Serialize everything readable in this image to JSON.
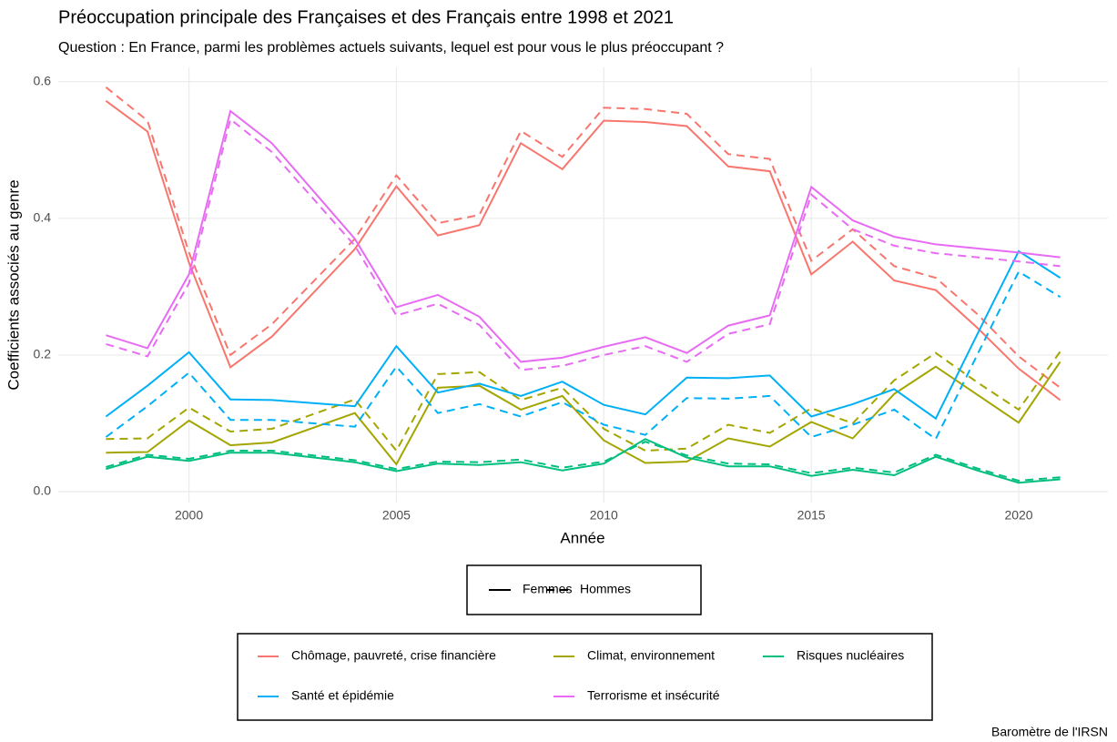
{
  "chart_data": {
    "type": "line",
    "title": "Préoccupation principale des Françaises et des Français entre 1998 et 2021",
    "subtitle": "Question : En France, parmi les problèmes actuels suivants, lequel est pour vous le plus préoccupant ?",
    "x_label": "Année",
    "y_label": "Coefficients associés au genre",
    "caption": "Baromètre de l'IRSN",
    "x": [
      1998,
      1999,
      2000,
      2001,
      2002,
      2004,
      2005,
      2006,
      2007,
      2008,
      2009,
      2010,
      2011,
      2012,
      2013,
      2014,
      2015,
      2016,
      2017,
      2018,
      2019,
      2020,
      2021
    ],
    "xlim": [
      1996.85,
      2022.15
    ],
    "xticks": [
      2000,
      2005,
      2010,
      2015,
      2020
    ],
    "ylim": [
      -0.016,
      0.621
    ],
    "yticks": [
      {
        "value": 0,
        "label": "0.0"
      },
      0.2,
      0.4,
      0.6
    ],
    "grid": true,
    "linetypes": [
      {
        "name": "Femmes",
        "dash": "solid"
      },
      {
        "name": "Hommes",
        "dash": "dashed"
      }
    ],
    "series": [
      {
        "name": "Chômage, pauvreté, crise financière",
        "color": "#F8766D",
        "values": [
          [
            0.572,
            0.527,
            0.335,
            0.182,
            0.227,
            0.355,
            0.447,
            0.375,
            0.39,
            0.51,
            0.472,
            0.543,
            0.541,
            0.535,
            0.476,
            0.469,
            0.318,
            0.366,
            0.309,
            0.295,
            0.24,
            0.18,
            0.134
          ],
          [
            0.592,
            0.543,
            0.35,
            0.2,
            0.245,
            0.37,
            0.463,
            0.393,
            0.405,
            0.528,
            0.49,
            0.562,
            0.56,
            0.553,
            0.494,
            0.487,
            0.338,
            0.384,
            0.33,
            0.313,
            0.26,
            0.198,
            0.152
          ]
        ]
      },
      {
        "name": "Climat, environnement",
        "color": "#A3A500",
        "values": [
          [
            0.057,
            0.058,
            0.104,
            0.068,
            0.072,
            0.115,
            0.04,
            0.152,
            0.155,
            0.12,
            0.14,
            0.075,
            0.042,
            0.044,
            0.078,
            0.066,
            0.102,
            0.078,
            0.143,
            0.183,
            0.142,
            0.101,
            0.19
          ],
          [
            0.077,
            0.078,
            0.123,
            0.088,
            0.092,
            0.135,
            0.06,
            0.172,
            0.175,
            0.134,
            0.152,
            0.092,
            0.06,
            0.063,
            0.098,
            0.086,
            0.122,
            0.1,
            0.163,
            0.203,
            0.16,
            0.12,
            0.205
          ]
        ]
      },
      {
        "name": "Risques nucléaires",
        "color": "#00BF7D",
        "values": [
          [
            0.033,
            0.051,
            0.045,
            0.057,
            0.057,
            0.043,
            0.03,
            0.041,
            0.039,
            0.043,
            0.031,
            0.041,
            0.077,
            0.05,
            0.037,
            0.037,
            0.023,
            0.032,
            0.024,
            0.051,
            0.031,
            0.013,
            0.018
          ],
          [
            0.036,
            0.054,
            0.048,
            0.06,
            0.06,
            0.046,
            0.033,
            0.044,
            0.043,
            0.047,
            0.035,
            0.044,
            0.073,
            0.053,
            0.041,
            0.04,
            0.027,
            0.035,
            0.028,
            0.054,
            0.034,
            0.016,
            0.021
          ]
        ]
      },
      {
        "name": "Santé et épidémie",
        "color": "#00B0F6",
        "values": [
          [
            0.11,
            0.155,
            0.204,
            0.135,
            0.134,
            0.125,
            0.213,
            0.145,
            0.158,
            0.14,
            0.161,
            0.127,
            0.113,
            0.167,
            0.166,
            0.17,
            0.11,
            0.128,
            0.15,
            0.107,
            0.23,
            0.352,
            0.313
          ],
          [
            0.08,
            0.125,
            0.174,
            0.105,
            0.105,
            0.095,
            0.183,
            0.115,
            0.128,
            0.11,
            0.131,
            0.098,
            0.083,
            0.137,
            0.136,
            0.14,
            0.08,
            0.098,
            0.12,
            0.077,
            0.2,
            0.322,
            0.285
          ]
        ]
      },
      {
        "name": "Terrorisme et insécurité",
        "color": "#E76BF3",
        "values": [
          [
            0.229,
            0.21,
            0.318,
            0.557,
            0.51,
            0.37,
            0.27,
            0.288,
            0.256,
            0.19,
            0.196,
            0.212,
            0.226,
            0.203,
            0.243,
            0.258,
            0.446,
            0.397,
            0.373,
            0.362,
            0.356,
            0.35,
            0.343
          ],
          [
            0.216,
            0.198,
            0.305,
            0.545,
            0.497,
            0.36,
            0.258,
            0.275,
            0.244,
            0.178,
            0.184,
            0.2,
            0.213,
            0.19,
            0.231,
            0.245,
            0.435,
            0.384,
            0.36,
            0.349,
            0.343,
            0.337,
            0.33
          ]
        ]
      }
    ]
  }
}
